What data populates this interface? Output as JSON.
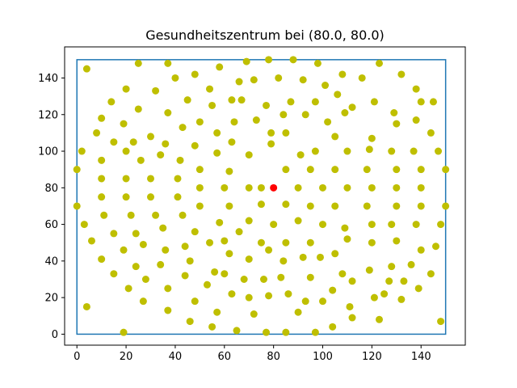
{
  "chart_data": {
    "type": "scatter",
    "title": "Gesundheitszentrum bei (80.0, 80.0)",
    "xlabel": "",
    "ylabel": "",
    "xlim": [
      -5,
      158
    ],
    "ylim": [
      -6,
      157
    ],
    "xticks": [
      0,
      20,
      40,
      60,
      80,
      100,
      120,
      140
    ],
    "yticks": [
      0,
      20,
      40,
      60,
      80,
      100,
      120,
      140
    ],
    "grid": false,
    "boundary": {
      "x": [
        0,
        150
      ],
      "y": [
        0,
        150
      ],
      "color": "#1f77b4"
    },
    "center": {
      "x": 80.0,
      "y": 80.0,
      "color": "#ff0000"
    },
    "points_color": "#bfbf00",
    "points": [
      [
        4,
        145
      ],
      [
        25,
        148
      ],
      [
        37,
        148
      ],
      [
        48,
        142
      ],
      [
        58,
        146
      ],
      [
        69,
        149
      ],
      [
        78,
        150
      ],
      [
        88,
        150
      ],
      [
        98,
        148
      ],
      [
        108,
        142
      ],
      [
        123,
        148
      ],
      [
        132,
        142
      ],
      [
        14,
        127
      ],
      [
        20,
        134
      ],
      [
        32,
        133
      ],
      [
        40,
        140
      ],
      [
        54,
        134
      ],
      [
        63,
        128
      ],
      [
        66,
        138
      ],
      [
        72,
        139
      ],
      [
        82,
        140
      ],
      [
        92,
        139
      ],
      [
        101,
        136
      ],
      [
        116,
        140
      ],
      [
        8,
        110
      ],
      [
        10,
        118
      ],
      [
        19,
        115
      ],
      [
        25,
        123
      ],
      [
        37,
        121
      ],
      [
        45,
        128
      ],
      [
        55,
        125
      ],
      [
        67,
        128
      ],
      [
        77,
        125
      ],
      [
        87,
        127
      ],
      [
        97,
        127
      ],
      [
        106,
        131
      ],
      [
        109,
        121
      ],
      [
        121,
        127
      ],
      [
        129,
        121
      ],
      [
        140,
        127
      ],
      [
        138,
        134
      ],
      [
        145,
        127
      ],
      [
        2,
        100
      ],
      [
        15,
        105
      ],
      [
        23,
        105
      ],
      [
        30,
        108
      ],
      [
        36,
        104
      ],
      [
        43,
        113
      ],
      [
        50,
        116
      ],
      [
        57,
        110
      ],
      [
        64,
        116
      ],
      [
        73,
        117
      ],
      [
        79,
        110
      ],
      [
        84,
        120
      ],
      [
        93,
        120
      ],
      [
        102,
        116
      ],
      [
        112,
        124
      ],
      [
        120,
        107
      ],
      [
        130,
        115
      ],
      [
        138,
        117
      ],
      [
        144,
        110
      ],
      [
        0,
        90
      ],
      [
        10,
        95
      ],
      [
        20,
        100
      ],
      [
        26,
        95
      ],
      [
        34,
        98
      ],
      [
        42,
        95
      ],
      [
        48,
        103
      ],
      [
        57,
        99
      ],
      [
        63,
        105
      ],
      [
        70,
        98
      ],
      [
        79,
        104
      ],
      [
        85,
        110
      ],
      [
        91,
        98
      ],
      [
        97,
        100
      ],
      [
        105,
        108
      ],
      [
        110,
        100
      ],
      [
        118,
        90
      ],
      [
        128,
        100
      ],
      [
        137,
        100
      ],
      [
        147,
        100
      ],
      [
        10,
        85
      ],
      [
        20,
        85
      ],
      [
        30,
        85
      ],
      [
        41,
        85
      ],
      [
        50,
        90
      ],
      [
        62,
        89
      ],
      [
        75,
        80
      ],
      [
        85,
        90
      ],
      [
        95,
        90
      ],
      [
        105,
        90
      ],
      [
        119,
        101
      ],
      [
        130,
        90
      ],
      [
        140,
        90
      ],
      [
        150,
        90
      ],
      [
        0,
        70
      ],
      [
        10,
        75
      ],
      [
        20,
        75
      ],
      [
        30,
        75
      ],
      [
        41,
        75
      ],
      [
        50,
        80
      ],
      [
        60,
        80
      ],
      [
        70,
        80
      ],
      [
        90,
        80
      ],
      [
        100,
        80
      ],
      [
        110,
        80
      ],
      [
        120,
        80
      ],
      [
        130,
        80
      ],
      [
        140,
        80
      ],
      [
        3,
        60
      ],
      [
        11,
        65
      ],
      [
        22,
        65
      ],
      [
        32,
        65
      ],
      [
        43,
        65
      ],
      [
        50,
        70
      ],
      [
        62,
        70
      ],
      [
        75,
        71
      ],
      [
        85,
        71
      ],
      [
        95,
        70
      ],
      [
        105,
        70
      ],
      [
        118,
        70
      ],
      [
        130,
        70
      ],
      [
        140,
        70
      ],
      [
        150,
        70
      ],
      [
        6,
        51
      ],
      [
        15,
        55
      ],
      [
        24,
        55
      ],
      [
        35,
        58
      ],
      [
        48,
        56
      ],
      [
        58,
        61
      ],
      [
        70,
        62
      ],
      [
        80,
        60
      ],
      [
        90,
        62
      ],
      [
        100,
        60
      ],
      [
        109,
        58
      ],
      [
        120,
        60
      ],
      [
        128,
        60
      ],
      [
        138,
        60
      ],
      [
        148,
        60
      ],
      [
        10,
        41
      ],
      [
        19,
        46
      ],
      [
        27,
        49
      ],
      [
        36,
        46
      ],
      [
        44,
        48
      ],
      [
        54,
        50
      ],
      [
        60,
        51
      ],
      [
        66,
        56
      ],
      [
        75,
        50
      ],
      [
        85,
        50
      ],
      [
        95,
        50
      ],
      [
        105,
        44
      ],
      [
        110,
        52
      ],
      [
        120,
        50
      ],
      [
        130,
        51
      ],
      [
        140,
        46
      ],
      [
        146,
        48
      ],
      [
        15,
        33
      ],
      [
        24,
        37
      ],
      [
        34,
        38
      ],
      [
        46,
        40
      ],
      [
        56,
        34
      ],
      [
        62,
        44
      ],
      [
        70,
        41
      ],
      [
        78,
        46
      ],
      [
        84,
        40
      ],
      [
        92,
        42
      ],
      [
        99,
        42
      ],
      [
        112,
        29
      ],
      [
        119,
        35
      ],
      [
        128,
        37
      ],
      [
        136,
        38
      ],
      [
        144,
        33
      ],
      [
        21,
        25
      ],
      [
        28,
        30
      ],
      [
        37,
        25
      ],
      [
        44,
        32
      ],
      [
        53,
        27
      ],
      [
        60,
        33
      ],
      [
        68,
        30
      ],
      [
        76,
        30
      ],
      [
        83,
        31
      ],
      [
        95,
        31
      ],
      [
        104,
        24
      ],
      [
        108,
        33
      ],
      [
        121,
        20
      ],
      [
        127,
        29
      ],
      [
        133,
        29
      ],
      [
        139,
        25
      ],
      [
        4,
        15
      ],
      [
        27,
        18
      ],
      [
        37,
        13
      ],
      [
        48,
        18
      ],
      [
        57,
        12
      ],
      [
        63,
        22
      ],
      [
        70,
        20
      ],
      [
        78,
        21
      ],
      [
        86,
        22
      ],
      [
        93,
        18
      ],
      [
        100,
        18
      ],
      [
        111,
        15
      ],
      [
        125,
        22
      ],
      [
        132,
        19
      ],
      [
        148,
        7
      ],
      [
        19,
        1
      ],
      [
        46,
        7
      ],
      [
        55,
        4
      ],
      [
        65,
        2
      ],
      [
        72,
        11
      ],
      [
        77,
        1
      ],
      [
        85,
        1
      ],
      [
        90,
        12
      ],
      [
        97,
        1
      ],
      [
        104,
        4
      ],
      [
        112,
        9
      ],
      [
        123,
        8
      ]
    ]
  }
}
